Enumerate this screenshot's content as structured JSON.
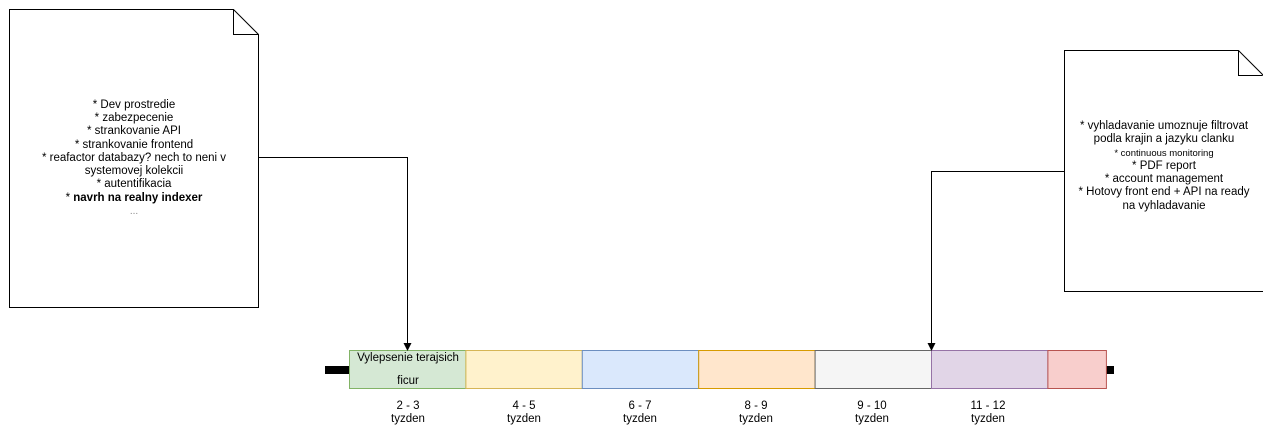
{
  "note_left": {
    "lines": [
      "* Dev prostredie",
      "* zabezpecenie",
      "* strankovanie API",
      "* strankovanie frontend",
      "* reafactor databazy? nech to neni v",
      "systemovej kolekcii",
      "* autentifikacia"
    ],
    "bold_line_prefix": "* ",
    "bold_line": "navrh na realny indexer",
    "ellipsis": "..."
  },
  "note_right": {
    "lines": [
      "* vyhladavanie umoznuje filtrovat",
      "podla krajin a jazyku clanku"
    ],
    "small_line": "* continuous monitoring",
    "lines_after": [
      "* PDF report",
      "* account management",
      "* Hotovy front end + API na ready",
      "na vyhladavanie"
    ]
  },
  "timeline": {
    "first_segment_text": [
      "Vylepsenie terajsich",
      "ficur"
    ],
    "segments": [
      {
        "fill": "#d5e8d4",
        "stroke": "#82b366"
      },
      {
        "fill": "#fff2cc",
        "stroke": "#d6b656"
      },
      {
        "fill": "#dae8fc",
        "stroke": "#6c8ebf"
      },
      {
        "fill": "#ffe6cc",
        "stroke": "#d79b00"
      },
      {
        "fill": "#f5f5f5",
        "stroke": "#666666"
      },
      {
        "fill": "#e1d5e7",
        "stroke": "#9673a6"
      },
      {
        "fill": "#f8cecc",
        "stroke": "#b85450"
      }
    ],
    "labels": [
      {
        "range": "2 - 3",
        "unit": "tyzden"
      },
      {
        "range": "4 - 5",
        "unit": "tyzden"
      },
      {
        "range": "6 - 7",
        "unit": "tyzden"
      },
      {
        "range": "8 - 9",
        "unit": "tyzden"
      },
      {
        "range": "9 - 10",
        "unit": "tyzden"
      },
      {
        "range": "11 - 12",
        "unit": "tyzden"
      }
    ]
  }
}
